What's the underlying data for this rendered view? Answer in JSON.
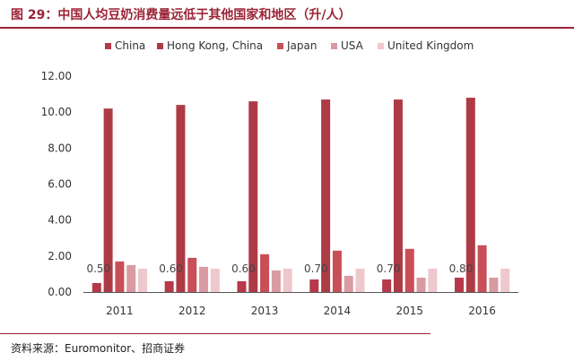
{
  "figure": {
    "title": "图 29：中国人均豆奶消费量远低于其他国家和地区（升/人）",
    "source": "资料来源：Euromonitor、招商证券"
  },
  "chart_data": {
    "type": "bar",
    "title": "",
    "xlabel": "",
    "ylabel": "",
    "categories": [
      "2011",
      "2012",
      "2013",
      "2014",
      "2015",
      "2016"
    ],
    "ylim": [
      0,
      12
    ],
    "yticks": [
      "0.00",
      "2.00",
      "4.00",
      "6.00",
      "8.00",
      "10.00",
      "12.00"
    ],
    "legend_position": "top",
    "grid": false,
    "series": [
      {
        "name": "China",
        "color": "#b5394a",
        "values": [
          0.5,
          0.6,
          0.6,
          0.7,
          0.7,
          0.8
        ]
      },
      {
        "name": "Hong Kong, China",
        "color": "#ad3b46",
        "values": [
          10.2,
          10.4,
          10.6,
          10.7,
          10.7,
          10.8
        ]
      },
      {
        "name": "Japan",
        "color": "#c84f57",
        "values": [
          1.7,
          1.9,
          2.1,
          2.3,
          2.4,
          2.6
        ]
      },
      {
        "name": "USA",
        "color": "#d99aa1",
        "values": [
          1.5,
          1.4,
          1.2,
          0.9,
          0.8,
          0.8
        ]
      },
      {
        "name": "United Kingdom",
        "color": "#eec8cc",
        "values": [
          1.3,
          1.3,
          1.3,
          1.3,
          1.3,
          1.3
        ]
      }
    ],
    "data_labels": {
      "series": "China",
      "values": [
        "0.50",
        "0.60",
        "0.60",
        "0.70",
        "0.70",
        "0.80"
      ]
    }
  }
}
